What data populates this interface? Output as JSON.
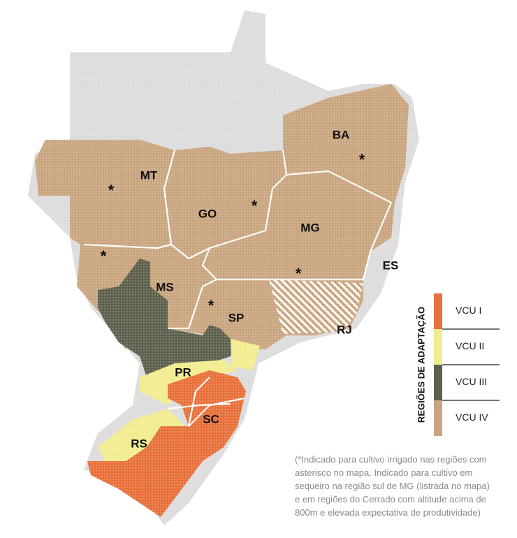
{
  "map": {
    "states": [
      {
        "label": "MT"
      },
      {
        "label": "GO"
      },
      {
        "label": "MG"
      },
      {
        "label": "BA"
      },
      {
        "label": "ES"
      },
      {
        "label": "MS"
      },
      {
        "label": "SP"
      },
      {
        "label": "RJ"
      },
      {
        "label": "PR"
      },
      {
        "label": "SC"
      },
      {
        "label": "RS"
      }
    ],
    "asterisk": "*"
  },
  "legend": {
    "title": "REGIÕES DE ADAPTAÇÃO",
    "items": [
      {
        "label": "VCU I",
        "color": "#e8703a"
      },
      {
        "label": "VCU II",
        "color": "#f2ec8f"
      },
      {
        "label": "VCU III",
        "color": "#5d604c"
      },
      {
        "label": "VCU IV",
        "color": "#c9a57f"
      }
    ]
  },
  "note": [
    "(*Indicado para cultivo irrigado nas regiões com",
    "asterisco no mapa. Indicado para cultivo em",
    "sequeiro na região sul de MG (listrada no mapa)",
    "e em regiões do Cerrado com altitude acima de",
    "800m e elevada expectativa de produtividade)"
  ]
}
